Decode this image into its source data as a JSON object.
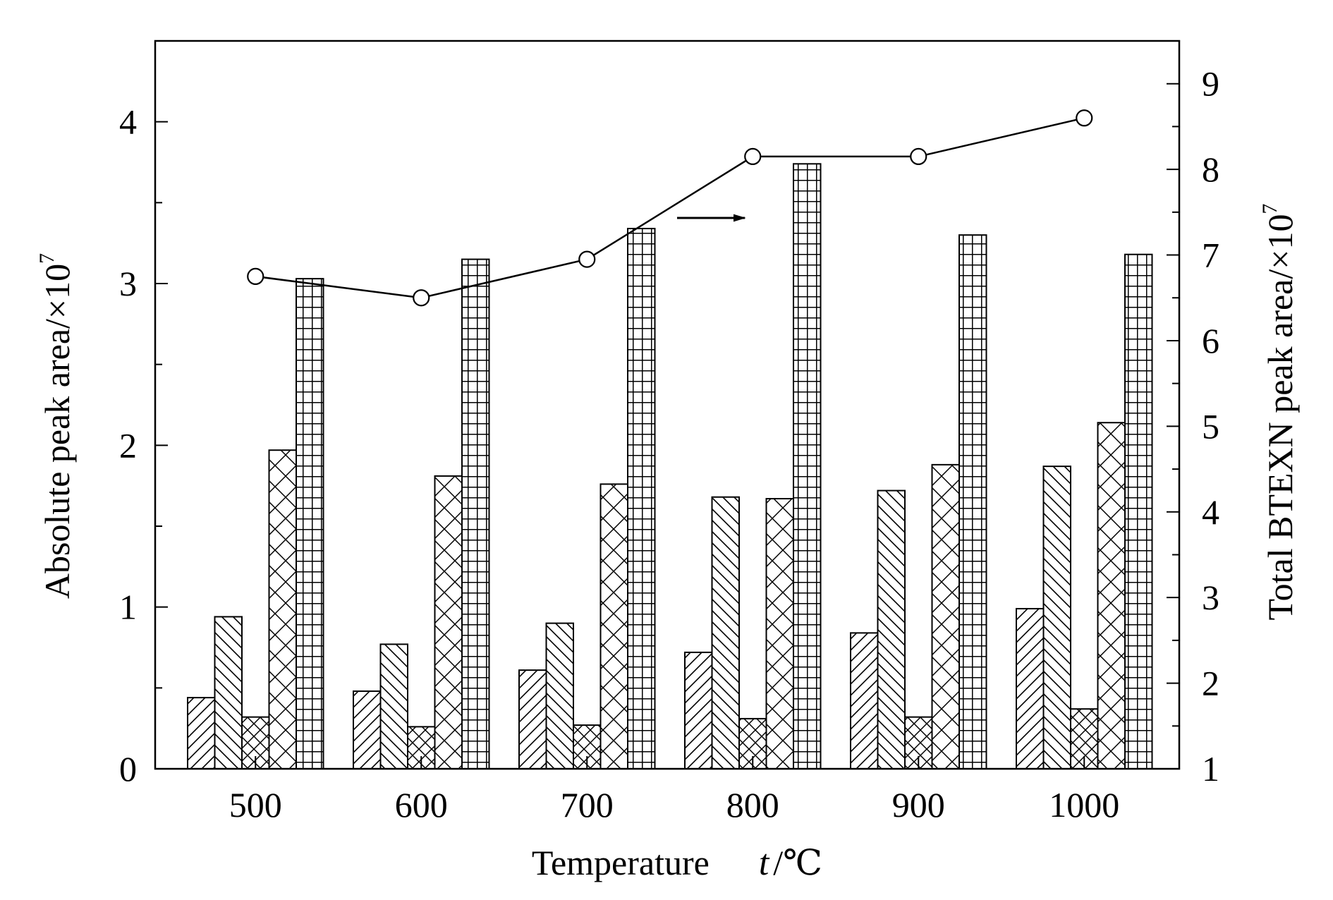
{
  "chart_data": {
    "type": "bar",
    "categories": [
      "500",
      "600",
      "700",
      "800",
      "900",
      "1000"
    ],
    "series": [
      {
        "pattern": "diagonal-forward",
        "values": [
          0.44,
          0.48,
          0.61,
          0.72,
          0.84,
          0.99
        ]
      },
      {
        "pattern": "diagonal-backward",
        "values": [
          0.94,
          0.77,
          0.9,
          1.68,
          1.72,
          1.87
        ]
      },
      {
        "pattern": "crosshatch-x",
        "values": [
          0.32,
          0.26,
          0.27,
          0.31,
          0.32,
          0.37
        ]
      },
      {
        "pattern": "crosshatch-x-large",
        "values": [
          1.97,
          1.81,
          1.76,
          1.67,
          1.88,
          2.14
        ]
      },
      {
        "pattern": "grid",
        "values": [
          3.03,
          3.15,
          3.34,
          3.74,
          3.3,
          3.18
        ]
      }
    ],
    "line_series": {
      "axis": "right",
      "marker": "open-circle",
      "values": [
        6.75,
        6.5,
        6.95,
        8.15,
        8.15,
        8.6
      ]
    },
    "xlabel": "Temperature",
    "xlabel_symbol": "t",
    "xlabel_unit": "/℃",
    "ylabel": "Absolute peak area/×10",
    "ylabel_exponent": "7",
    "y2label": "Total BTEXN peak area/×10",
    "y2label_exponent": "7",
    "ylim": [
      0,
      4.5
    ],
    "y_ticks": [
      "0",
      "1",
      "2",
      "3",
      "4"
    ],
    "y2lim": [
      1,
      9.5
    ],
    "y2_ticks": [
      "1",
      "2",
      "3",
      "4",
      "5",
      "6",
      "7",
      "8",
      "9"
    ],
    "arrow_direction": "right",
    "grid": false,
    "legend": "none"
  }
}
